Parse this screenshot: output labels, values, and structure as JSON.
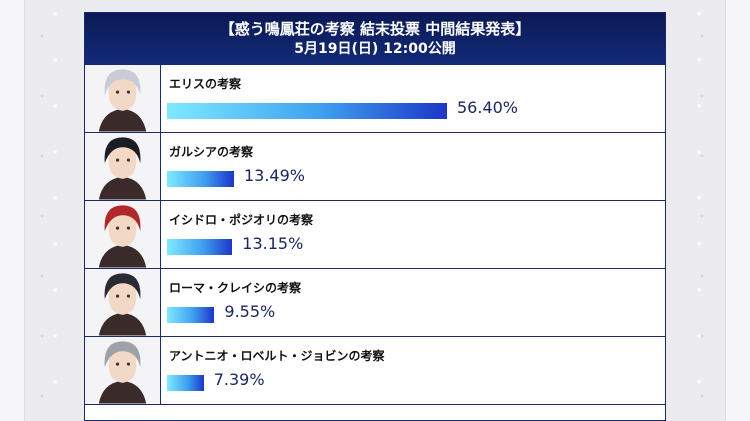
{
  "header": {
    "title": "【惑う鳴鳳荘の考察 結末投票 中間結果発表】",
    "subtitle": "5月19日(日) 12:00公開"
  },
  "chart_data": {
    "type": "bar",
    "orientation": "horizontal",
    "categories": [
      "エリスの考察",
      "ガルシアの考察",
      "イシドロ・ポジオリの考察",
      "ローマ・クレイシの考察",
      "アントニオ・ロベルト・ジョビンの考察"
    ],
    "values": [
      56.4,
      13.49,
      13.15,
      9.55,
      7.39
    ],
    "value_labels": [
      "56.40%",
      "13.49%",
      "13.15%",
      "9.55%",
      "7.39%"
    ],
    "unit": "%",
    "xlim": [
      0,
      56.4
    ],
    "grid": false,
    "legend": "none"
  },
  "portraits": [
    {
      "icon": "silver-haired-woman-portrait-icon",
      "hair": "#c9ccd6"
    },
    {
      "icon": "dark-haired-man-portrait-icon",
      "hair": "#1c1c26"
    },
    {
      "icon": "red-haired-woman-portrait-icon",
      "hair": "#b0282a"
    },
    {
      "icon": "white-hat-man-portrait-icon",
      "hair": "#2a2a33"
    },
    {
      "icon": "gray-haired-man-portrait-icon",
      "hair": "#9ea2a8"
    }
  ],
  "colors": {
    "header": "#0b1a55",
    "border": "#1a2a66",
    "bar_start": "#7fe9ff",
    "bar_end": "#1d36c8",
    "value_text": "#1b2660"
  }
}
